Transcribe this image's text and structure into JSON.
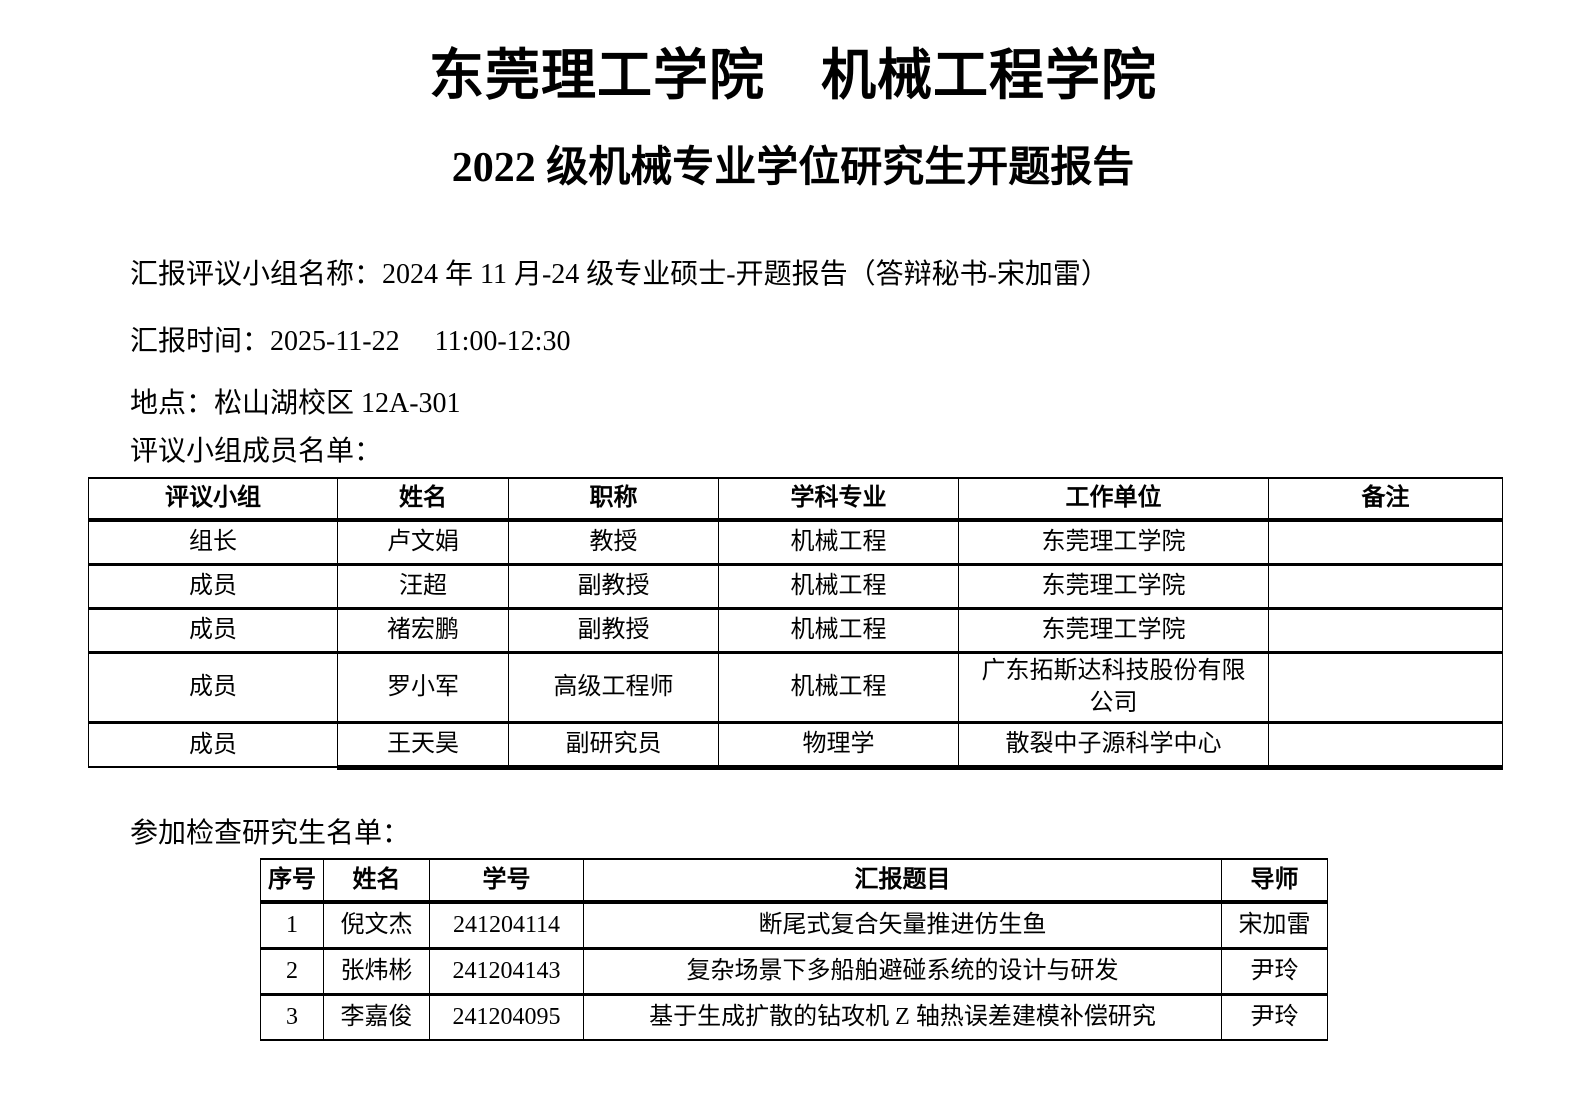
{
  "document": {
    "title": "东莞理工学院　机械工程学院",
    "subtitle": "2022 级机械专业学位研究生开题报告",
    "info": {
      "panel_name": "汇报评议小组名称：2024 年 11 月-24 级专业硕士-开题报告（答辩秘书-宋加雷）",
      "report_time": "汇报时间：2025-11-22　 11:00-12:30",
      "location": "地点：松山湖校区 12A-301",
      "committee_list_label": "评议小组成员名单：",
      "students_list_label": "参加检查研究生名单："
    }
  },
  "committee_table": {
    "columns": [
      "评议小组",
      "姓名",
      "职称",
      "学科专业",
      "工作单位",
      "备注"
    ],
    "rows": [
      [
        "组长",
        "卢文娟",
        "教授",
        "机械工程",
        "东莞理工学院",
        ""
      ],
      [
        "成员",
        "汪超",
        "副教授",
        "机械工程",
        "东莞理工学院",
        ""
      ],
      [
        "成员",
        "褚宏鹏",
        "副教授",
        "机械工程",
        "东莞理工学院",
        ""
      ],
      [
        "成员",
        "罗小军",
        "高级工程师",
        "机械工程",
        "广东拓斯达科技股份有限公司",
        ""
      ],
      [
        "成员",
        "王天昊",
        "副研究员",
        "物理学",
        "散裂中子源科学中心",
        ""
      ]
    ]
  },
  "students_table": {
    "columns": [
      "序号",
      "姓名",
      "学号",
      "汇报题目",
      "导师"
    ],
    "rows": [
      [
        "1",
        "倪文杰",
        "241204114",
        "断尾式复合矢量推进仿生鱼",
        "宋加雷"
      ],
      [
        "2",
        "张炜彬",
        "241204143",
        "复杂场景下多船舶避碰系统的设计与研发",
        "尹玲"
      ],
      [
        "3",
        "李嘉俊",
        "241204095",
        "基于生成扩散的钻攻机 Z 轴热误差建模补偿研究",
        "尹玲"
      ]
    ]
  },
  "colors": {
    "text": "#000000",
    "background": "#ffffff",
    "table_border": "#000000"
  }
}
